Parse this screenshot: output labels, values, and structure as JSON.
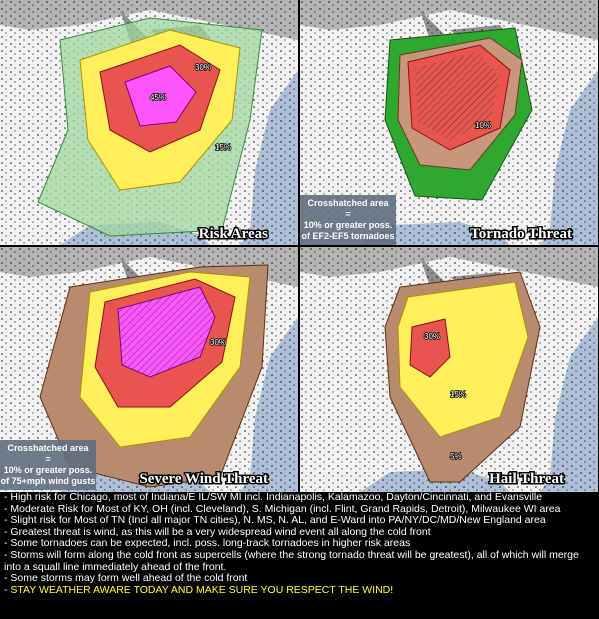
{
  "panels": [
    {
      "title": "Risk Areas",
      "labels": [
        "45%",
        "30%",
        "15%"
      ]
    },
    {
      "title": "Tornado Threat",
      "note": [
        "Crosshatched area",
        "=",
        "10% or greater poss.",
        "of EF2-EF5 tornadoes"
      ],
      "labels": [
        "10%"
      ]
    },
    {
      "title": "Severe Wind Threat",
      "note": [
        "Crosshatched area",
        "=",
        "10% or greater poss.",
        "of 75+mph wind gusts"
      ],
      "labels": [
        "30%"
      ]
    },
    {
      "title": "Hail Threat",
      "labels": [
        "30%",
        "15%",
        "5%"
      ]
    }
  ],
  "bullets": [
    "- High risk for Chicago, most of Indiana/E IL/SW MI incl. Indianapolis, Kalamazoo, Dayton/Cincinnati, and Evansville",
    "- Moderate Risk for Most of KY, OH (incl. Cleveland), S. Michigan (incl. Flint, Grand Rapids, Detroit), Milwaukee WI area",
    "- Slight risk for Most of TN (Incl all major TN cities), N. MS, N. AL, and E-Ward into PA/NY/DC/MD/New England area",
    "- Greatest threat is wind, as this will be a very widespread wind event all along the cold front",
    "- Some tornadoes can be expected, incl. poss. long-track tornadoes in higher risk areas",
    "- Storms will form along the cold front as supercells (where the strong tornado threat will be greatest), all of which will merge into a squall line immediately ahead of the front.",
    "- Some storms may form well ahead of the cold front",
    "- STAY WEATHER AWARE TODAY AND MAKE SURE YOU RESPECT THE WIND!"
  ]
}
